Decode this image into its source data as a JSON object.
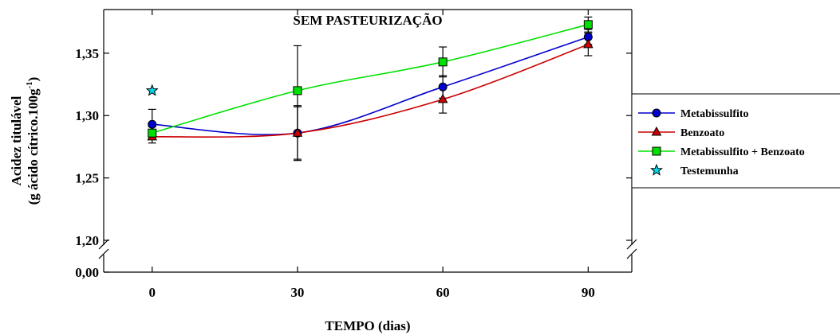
{
  "chart_data": {
    "type": "line",
    "title": "SEM PASTEURIZAÇÃO",
    "xlabel": "TEMPO (dias)",
    "ylabel_line1": "Acidez titulável",
    "ylabel_line2_prefix": "(g ácido cítrico.100g",
    "ylabel_line2_sup": "-1",
    "ylabel_line2_suffix": ")",
    "x_ticks": [
      0,
      30,
      60,
      90
    ],
    "x_tick_labels": [
      "0",
      "30",
      "60",
      "90"
    ],
    "y_ticks_upper": [
      1.2,
      1.25,
      1.3,
      1.35
    ],
    "y_tick_labels_upper": [
      "1,20",
      "1,25",
      "1,30",
      "1,35"
    ],
    "y_tick_lower": 0.0,
    "y_tick_label_lower": "0,00",
    "xlim": [
      -10,
      99
    ],
    "ylim_upper": [
      1.2,
      1.385
    ],
    "axis_break": true,
    "legend_position": "right",
    "series": [
      {
        "name": "Metabissulfito",
        "color": "#0000cc",
        "marker": "circle",
        "x": [
          0,
          30,
          60,
          90
        ],
        "y": [
          1.293,
          1.286,
          1.323,
          1.363
        ],
        "err": [
          0.012,
          0.022,
          0.009,
          0.006
        ]
      },
      {
        "name": "Benzoato",
        "color": "#cc0000",
        "marker": "triangle",
        "x": [
          0,
          30,
          60,
          90
        ],
        "y": [
          1.283,
          1.286,
          1.313,
          1.357
        ],
        "err": [
          0.005,
          0.021,
          0.011,
          0.009
        ]
      },
      {
        "name": "Metabissulfito + Benzoato",
        "color": "#00e000",
        "marker": "square",
        "x": [
          0,
          30,
          60,
          90
        ],
        "y": [
          1.286,
          1.32,
          1.343,
          1.373
        ],
        "err": [
          0.005,
          0.036,
          0.012,
          0.006
        ]
      },
      {
        "name": "Testemunha",
        "color": "#00d8e8",
        "marker": "star",
        "x": [
          0
        ],
        "y": [
          1.32
        ],
        "err": [
          0
        ]
      }
    ]
  }
}
